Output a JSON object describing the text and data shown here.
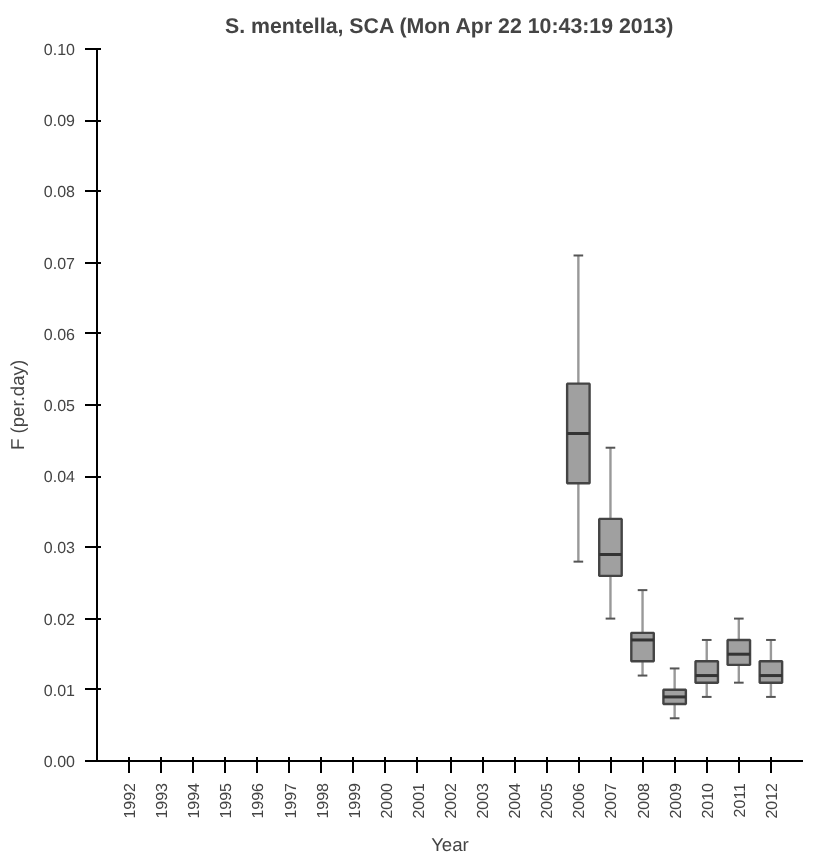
{
  "chart_data": {
    "type": "box",
    "title": "S. mentella, SCA (Mon Apr 22 10:43:19 2013)",
    "xlabel": "Year",
    "ylabel": "F (per.day)",
    "categories": [
      "1992",
      "1993",
      "1994",
      "1995",
      "1996",
      "1997",
      "1998",
      "1999",
      "2000",
      "2001",
      "2002",
      "2003",
      "2004",
      "2005",
      "2006",
      "2007",
      "2008",
      "2009",
      "2010",
      "2011",
      "2012"
    ],
    "series": [
      {
        "color": "#a0a0a0",
        "boxes": [
          null,
          null,
          null,
          null,
          null,
          null,
          null,
          null,
          null,
          null,
          null,
          null,
          null,
          null,
          {
            "low": 0.028,
            "q1": 0.039,
            "median": 0.046,
            "q3": 0.053,
            "high": 0.071
          },
          {
            "low": 0.02,
            "q1": 0.026,
            "median": 0.029,
            "q3": 0.034,
            "high": 0.044
          },
          {
            "low": 0.012,
            "q1": 0.014,
            "median": 0.017,
            "q3": 0.018,
            "high": 0.024
          },
          {
            "low": 0.006,
            "q1": 0.008,
            "median": 0.009,
            "q3": 0.01,
            "high": 0.013
          },
          {
            "low": 0.009,
            "q1": 0.011,
            "median": 0.012,
            "q3": 0.014,
            "high": 0.017
          },
          {
            "low": 0.011,
            "q1": 0.0135,
            "median": 0.015,
            "q3": 0.017,
            "high": 0.02
          },
          {
            "low": 0.009,
            "q1": 0.011,
            "median": 0.012,
            "q3": 0.014,
            "high": 0.017
          }
        ]
      }
    ],
    "ylim": [
      0,
      0.1
    ],
    "yticks": [
      {
        "value": 0,
        "label": "0.00"
      },
      {
        "value": 0.01,
        "label": "0.01"
      },
      {
        "value": 0.02,
        "label": "0.02"
      },
      {
        "value": 0.03,
        "label": "0.03"
      },
      {
        "value": 0.04,
        "label": "0.04"
      },
      {
        "value": 0.05,
        "label": "0.05"
      },
      {
        "value": 0.06,
        "label": "0.06"
      },
      {
        "value": 0.07,
        "label": "0.07"
      },
      {
        "value": 0.08,
        "label": "0.08"
      },
      {
        "value": 0.09,
        "label": "0.09"
      },
      {
        "value": 0.1,
        "label": "0.10"
      }
    ],
    "grid": false
  }
}
